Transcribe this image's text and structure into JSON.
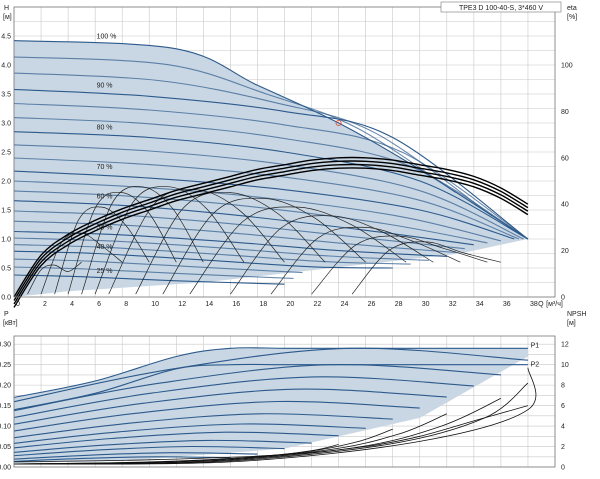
{
  "chart_data": [
    {
      "type": "line",
      "title": "TPE3 D 100-40-S, 3*460 V",
      "ylabel": "H",
      "yunit": "[м]",
      "xlabel": "Q",
      "xunit": "[м³/ч]",
      "xlim": [
        0,
        40
      ],
      "ylim": [
        0,
        5.0
      ],
      "xticks": [
        0,
        2,
        4,
        6,
        8,
        10,
        12,
        14,
        16,
        18,
        20,
        22,
        24,
        26,
        28,
        30,
        32,
        34,
        36,
        38
      ],
      "yticks": [
        "0.0",
        "0.5",
        "1.0",
        "1.5",
        "2.0",
        "2.5",
        "3.0",
        "3.5",
        "4.0",
        "4.5"
      ],
      "yticks_values": [
        0,
        0.5,
        1.0,
        1.5,
        2.0,
        2.5,
        3.0,
        3.5,
        4.0,
        4.5
      ],
      "y2label": "eta",
      "y2unit": "[%]",
      "y2lim": [
        0,
        125
      ],
      "y2ticks": [
        "0",
        "20",
        "40",
        "60",
        "80",
        "100"
      ],
      "y2ticks_values": [
        0,
        20,
        40,
        60,
        80,
        100
      ],
      "grid": true,
      "speed_labels": [
        "100 %",
        "90 %",
        "80 %",
        "70 %",
        "60 %",
        "50 %",
        "40 %",
        "25 %"
      ],
      "speed_label_positions_data": [
        [
          3,
          4.42
        ],
        [
          3,
          3.58
        ],
        [
          3,
          2.85
        ],
        [
          3,
          2.17
        ],
        [
          3,
          1.66
        ],
        [
          3,
          1.13
        ],
        [
          3,
          0.79
        ],
        [
          3,
          0.38
        ]
      ],
      "series": [
        {
          "label_index": 0,
          "x": [
            0,
            12,
            18,
            24,
            30,
            38
          ],
          "y": [
            4.42,
            4.28,
            3.65,
            3.0,
            2.2,
            1.0
          ]
        },
        {
          "label_index": 1,
          "x": [
            0,
            10,
            20,
            28,
            38
          ],
          "y": [
            3.58,
            3.46,
            3.2,
            2.75,
            1.0
          ]
        },
        {
          "label_index": 2,
          "x": [
            0,
            10,
            20,
            30,
            38
          ],
          "y": [
            2.85,
            2.75,
            2.5,
            2.0,
            1.0
          ]
        },
        {
          "label_index": 3,
          "x": [
            0,
            10,
            20,
            30,
            37
          ],
          "y": [
            2.17,
            2.05,
            1.85,
            1.5,
            1.0
          ]
        },
        {
          "label_index": 4,
          "x": [
            0,
            8,
            16,
            26,
            34
          ],
          "y": [
            1.66,
            1.58,
            1.42,
            1.15,
            0.9
          ]
        },
        {
          "label_index": 5,
          "x": [
            0,
            8,
            16,
            24,
            32
          ],
          "y": [
            1.13,
            1.07,
            0.95,
            0.8,
            0.7
          ]
        },
        {
          "label_index": 6,
          "x": [
            0,
            6,
            14,
            22,
            28
          ],
          "y": [
            0.79,
            0.75,
            0.64,
            0.52,
            0.5
          ]
        },
        {
          "label_index": 7,
          "x": [
            0,
            5,
            12,
            20
          ],
          "y": [
            0.38,
            0.35,
            0.28,
            0.22
          ]
        }
      ],
      "efficiency": {
        "unit": "%",
        "x": [
          0,
          2,
          4,
          6,
          8,
          10,
          12,
          14,
          16,
          18,
          20,
          22,
          24,
          26,
          28,
          30,
          32,
          34,
          36,
          38
        ],
        "y": [
          0,
          18,
          27,
          33,
          38,
          42,
          46,
          49,
          52,
          55,
          57,
          59,
          60,
          60,
          59,
          57,
          55,
          52,
          47,
          40
        ]
      },
      "operating_point": {
        "x": 24,
        "y": 3.0
      }
    },
    {
      "type": "line",
      "ylabel": "P",
      "yunit": "[кВт]",
      "xlim": [
        0,
        40
      ],
      "ylim": [
        0,
        0.32
      ],
      "yticks": [
        "0.00",
        "0.05",
        "0.10",
        "0.15",
        "0.20",
        "0.25",
        "0.30"
      ],
      "yticks_values": [
        0,
        0.05,
        0.1,
        0.15,
        0.2,
        0.25,
        0.3
      ],
      "y2label": "NPSH",
      "y2unit": "[м]",
      "y2lim": [
        0,
        12.8
      ],
      "y2ticks": [
        "0",
        "2",
        "4",
        "6",
        "8",
        "10",
        "12"
      ],
      "y2ticks_values": [
        0,
        2,
        4,
        6,
        8,
        10,
        12
      ],
      "grid": true,
      "labels": [
        "P1",
        "P2"
      ],
      "P1_envelope": {
        "x": [
          0,
          6,
          12,
          16,
          20,
          24,
          30,
          38
        ],
        "y": [
          0.17,
          0.21,
          0.27,
          0.29,
          0.29,
          0.29,
          0.29,
          0.29
        ]
      },
      "P2_envelope": {
        "x": [
          0,
          6,
          12,
          16,
          20,
          24,
          30,
          38
        ],
        "y": [
          0.14,
          0.18,
          0.24,
          0.25,
          0.25,
          0.25,
          0.25,
          0.25
        ]
      },
      "npsh": {
        "x": [
          0,
          10,
          20,
          26,
          30,
          34,
          38
        ],
        "y": [
          0.5,
          0.7,
          1.2,
          2.0,
          3.0,
          4.5,
          6.0
        ]
      }
    }
  ]
}
